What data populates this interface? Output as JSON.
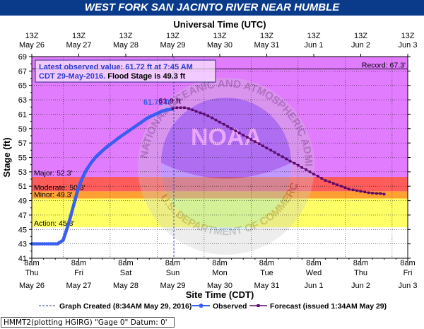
{
  "title": "WEST FORK SAN JACINTO RIVER NEAR HUMBLE",
  "footer": "HMMT2(plotting HGIRG) \"Gage 0\" Datum: 0'",
  "chart_data": {
    "type": "line",
    "title": "WEST FORK SAN JACINTO RIVER NEAR HUMBLE",
    "top_axis_label": "Universal Time (UTC)",
    "xlabel": "Site Time (CDT)",
    "ylabel": "Stage (ft)",
    "ylim": [
      41,
      69
    ],
    "yticks": [
      41,
      43,
      45,
      47,
      49,
      51,
      53,
      55,
      57,
      59,
      61,
      63,
      65,
      67,
      69
    ],
    "x_day_range": [
      26.333,
      34.333
    ],
    "bottom_ticks": [
      {
        "time": "8am",
        "dow": "Thu",
        "date": "May 26"
      },
      {
        "time": "8am",
        "dow": "Fri",
        "date": "May 27"
      },
      {
        "time": "8am",
        "dow": "Sat",
        "date": "May 28"
      },
      {
        "time": "8am",
        "dow": "Sun",
        "date": "May 29"
      },
      {
        "time": "8am",
        "dow": "Mon",
        "date": "May 30"
      },
      {
        "time": "8am",
        "dow": "Tue",
        "date": "May 31"
      },
      {
        "time": "8am",
        "dow": "Wed",
        "date": "Jun 1"
      },
      {
        "time": "8am",
        "dow": "Thu",
        "date": "Jun 2"
      },
      {
        "time": "8am",
        "dow": "Fri",
        "date": "Jun 3"
      }
    ],
    "top_ticks": [
      {
        "time": "13Z",
        "date": "May 26"
      },
      {
        "time": "13Z",
        "date": "May 27"
      },
      {
        "time": "13Z",
        "date": "May 28"
      },
      {
        "time": "13Z",
        "date": "May 29"
      },
      {
        "time": "13Z",
        "date": "May 30"
      },
      {
        "time": "13Z",
        "date": "May 31"
      },
      {
        "time": "13Z",
        "date": "Jun 1"
      },
      {
        "time": "13Z",
        "date": "Jun 2"
      },
      {
        "time": "13Z",
        "date": "Jun 3"
      }
    ],
    "flood_bands": [
      {
        "name": "Action",
        "label": "Action: 45.3'",
        "from": 45.3,
        "to": 49.3,
        "color": "#ffff66"
      },
      {
        "name": "Minor",
        "label": "Minor: 49.3'",
        "from": 49.3,
        "to": 50.3,
        "color": "#ffa033"
      },
      {
        "name": "Moderate",
        "label": "Moderate: 50.3'",
        "from": 50.3,
        "to": 52.3,
        "color": "#ff5c5c"
      },
      {
        "name": "Major",
        "label": "Major: 52.3'",
        "from": 52.3,
        "to": 69,
        "color": "#e27cff"
      }
    ],
    "record": {
      "label": "Record: 67.3'",
      "value": 67.3
    },
    "annotation": {
      "line1": "Latest observed value: 61.72 ft at 7:45 AM",
      "line2_blue": "CDT 29-May-2016.",
      "line2_black": "Flood Stage is 49.3 ft"
    },
    "observed_label": "61.72 ft",
    "forecast_label": "61.9 ft",
    "graph_created_day": 29.356,
    "observed": {
      "x": [
        26.333,
        26.6,
        26.88,
        27.0,
        27.05,
        27.1,
        27.15,
        27.2,
        27.25,
        27.3,
        27.35,
        27.4,
        27.45,
        27.5,
        27.6,
        27.7,
        27.8,
        27.9,
        28.0,
        28.2,
        28.4,
        28.6,
        28.8,
        29.0,
        29.1,
        29.2,
        29.3,
        29.323
      ],
      "y": [
        43.0,
        43.0,
        43.0,
        43.5,
        44.5,
        45.5,
        46.6,
        47.8,
        49.0,
        50.2,
        51.2,
        52.0,
        52.7,
        53.3,
        54.3,
        55.1,
        55.7,
        56.3,
        56.8,
        57.8,
        58.7,
        59.6,
        60.5,
        61.1,
        61.4,
        61.6,
        61.7,
        61.72
      ]
    },
    "forecast": {
      "x": [
        29.333,
        29.42,
        29.5,
        29.58,
        29.67,
        29.75,
        29.83,
        29.92,
        30.0,
        30.08,
        30.17,
        30.25,
        30.33,
        30.42,
        30.5,
        30.58,
        30.67,
        30.75,
        30.83,
        30.92,
        31.0,
        31.08,
        31.17,
        31.25,
        31.33,
        31.42,
        31.5,
        31.58,
        31.67,
        31.75,
        31.83,
        31.92,
        32.0,
        32.08,
        32.17,
        32.25,
        32.33,
        32.42,
        32.5,
        32.58,
        32.67,
        32.75,
        32.83,
        32.92,
        33.0,
        33.08,
        33.17,
        33.25,
        33.33,
        33.42,
        33.5,
        33.58,
        33.67,
        33.75,
        33.83
      ],
      "y": [
        61.8,
        61.9,
        61.9,
        61.9,
        61.8,
        61.6,
        61.4,
        61.2,
        61.0,
        60.8,
        60.5,
        60.2,
        59.9,
        59.6,
        59.3,
        59.0,
        58.7,
        58.4,
        58.1,
        57.8,
        57.5,
        57.2,
        56.9,
        56.6,
        56.3,
        56.0,
        55.7,
        55.4,
        55.1,
        54.8,
        54.5,
        54.2,
        53.9,
        53.6,
        53.3,
        53.0,
        52.7,
        52.4,
        52.1,
        51.8,
        51.6,
        51.4,
        51.2,
        51.0,
        50.8,
        50.6,
        50.5,
        50.4,
        50.3,
        50.2,
        50.1,
        50.05,
        50.0,
        50.0,
        49.9
      ]
    },
    "legend": {
      "created": "Graph Created (8:34AM May 29, 2016)",
      "observed": "Observed",
      "forecast": "Forecast (issued 1:34AM May 29)"
    },
    "watermark": {
      "ring_text": "NATIONAL OCEANIC AND ATMOSPHERIC ADMINISTRATION",
      "bottom_text": "U.S. DEPARTMENT OF COMMERCE",
      "center_text": "NOAA"
    },
    "colors": {
      "observed": "#3a5ff0",
      "forecast": "#5a0a6a",
      "below_action": "#ffffff",
      "title_bar": "#0a3a8a"
    }
  }
}
